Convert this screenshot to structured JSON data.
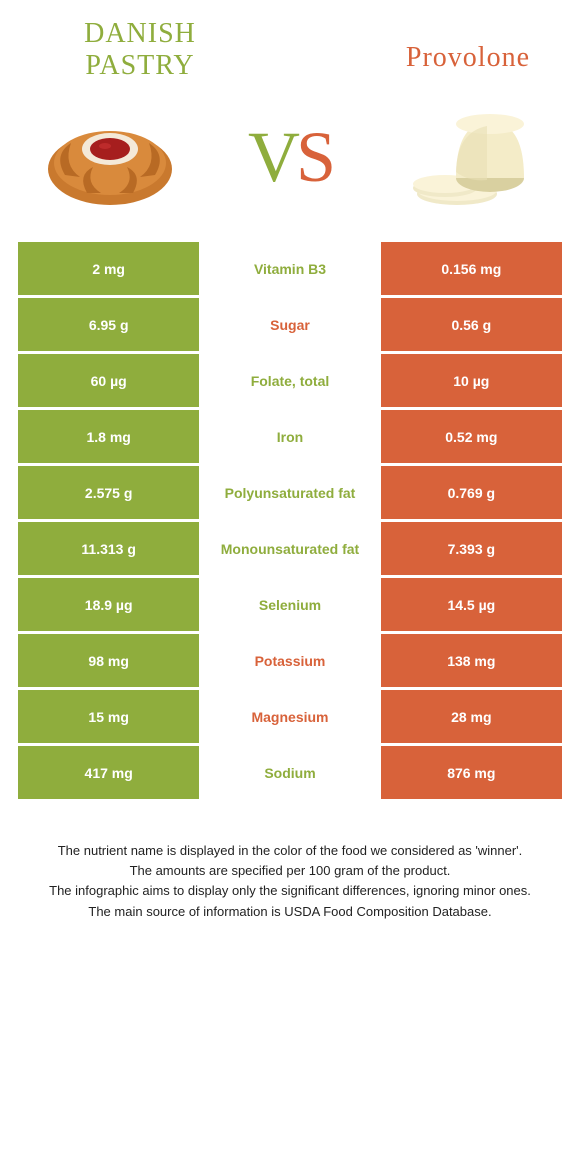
{
  "header": {
    "left_title": "DANISH PASTRY",
    "right_title": "Provolone",
    "vs_v": "V",
    "vs_s": "S"
  },
  "colors": {
    "green": "#8fad3d",
    "orange": "#d8623a",
    "bg": "#ffffff",
    "text": "#222222"
  },
  "rows": [
    {
      "left": "2 mg",
      "nutrient": "Vitamin B3",
      "right": "0.156 mg",
      "winner": "left"
    },
    {
      "left": "6.95 g",
      "nutrient": "Sugar",
      "right": "0.56 g",
      "winner": "right"
    },
    {
      "left": "60 µg",
      "nutrient": "Folate, total",
      "right": "10 µg",
      "winner": "left"
    },
    {
      "left": "1.8 mg",
      "nutrient": "Iron",
      "right": "0.52 mg",
      "winner": "left"
    },
    {
      "left": "2.575 g",
      "nutrient": "Polyunsaturated fat",
      "right": "0.769 g",
      "winner": "left"
    },
    {
      "left": "11.313 g",
      "nutrient": "Monounsaturated fat",
      "right": "7.393 g",
      "winner": "left"
    },
    {
      "left": "18.9 µg",
      "nutrient": "Selenium",
      "right": "14.5 µg",
      "winner": "left"
    },
    {
      "left": "98 mg",
      "nutrient": "Potassium",
      "right": "138 mg",
      "winner": "right"
    },
    {
      "left": "15 mg",
      "nutrient": "Magnesium",
      "right": "28 mg",
      "winner": "right"
    },
    {
      "left": "417 mg",
      "nutrient": "Sodium",
      "right": "876 mg",
      "winner": "left"
    }
  ],
  "footer": {
    "line1": "The nutrient name is displayed in the color of the food we considered as 'winner'.",
    "line2": "The amounts are specified per 100 gram of the product.",
    "line3": "The infographic aims to display only the significant differences, ignoring minor ones.",
    "line4": "The main source of information is USDA Food Composition Database."
  }
}
